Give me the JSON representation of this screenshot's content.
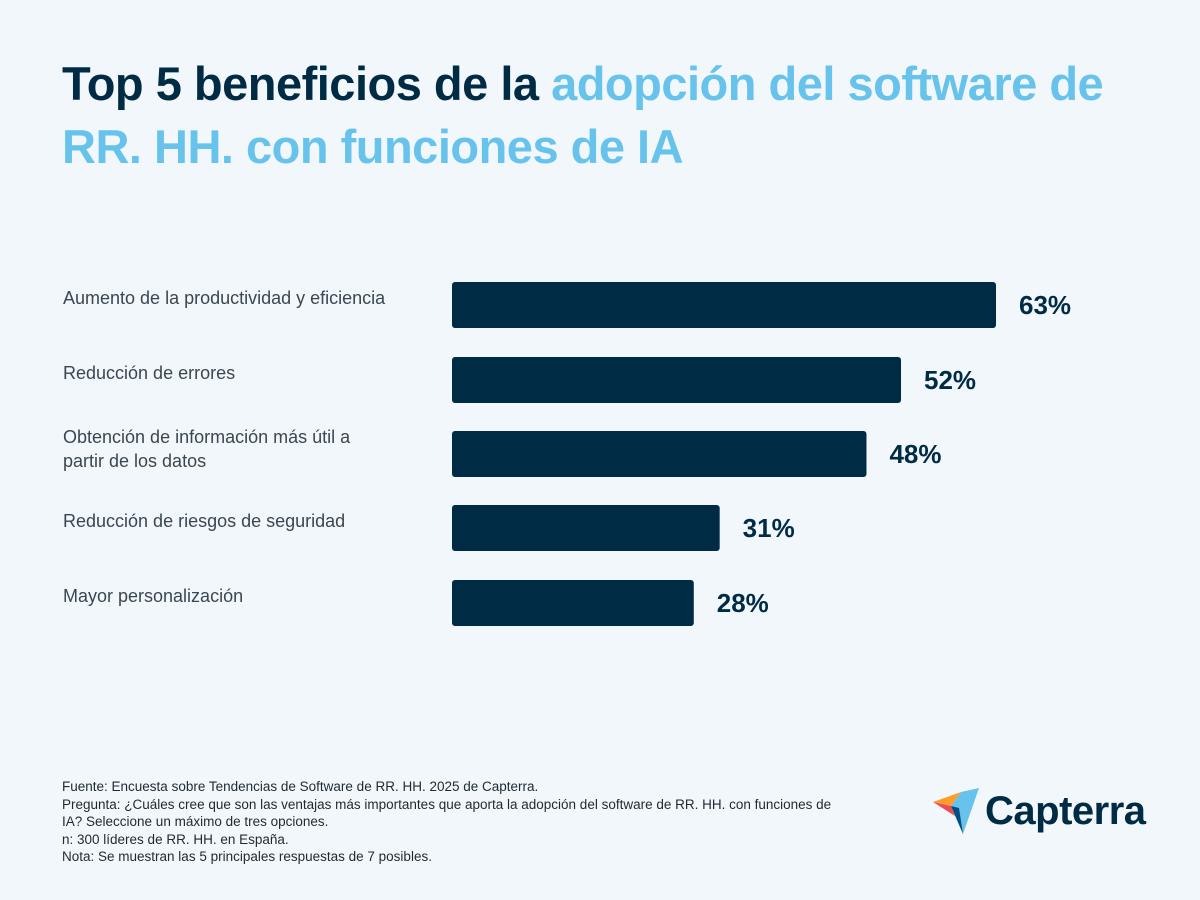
{
  "title": {
    "part1": "Top 5 beneficios de la ",
    "part2": "adopción del software de RR. HH. con funciones de IA"
  },
  "chart_data": {
    "type": "bar",
    "orientation": "horizontal",
    "categories": [
      [
        "Aumento de la productividad y eficiencia"
      ],
      [
        "Reducción de errores"
      ],
      [
        "Obtención de información más útil a",
        "partir de los datos"
      ],
      [
        "Reducción de riesgos de seguridad"
      ],
      [
        "Mayor personalización"
      ]
    ],
    "values": [
      63,
      52,
      48,
      31,
      28
    ],
    "value_labels": [
      "63%",
      "52%",
      "48%",
      "31%",
      "28%"
    ],
    "unit": "%",
    "xlim": [
      0,
      100
    ],
    "grid": false,
    "bar_color": "#002b45"
  },
  "footer": {
    "lines": [
      "Fuente: Encuesta sobre Tendencias de Software de RR. HH. 2025 de Capterra.",
      "Pregunta: ¿Cuáles cree que son las ventajas más importantes que aporta la adopción del software de RR. HH. con funciones de IA? Seleccione un máximo de tres opciones.",
      "n: 300 líderes de RR. HH. en España.",
      "Nota: Se muestran las 5 principales respuestas de 7 posibles."
    ]
  },
  "logo": {
    "text": "Capterra"
  },
  "colors": {
    "dark": "#002b45",
    "accent": "#67c3ec",
    "background": "#f2f7fc"
  }
}
